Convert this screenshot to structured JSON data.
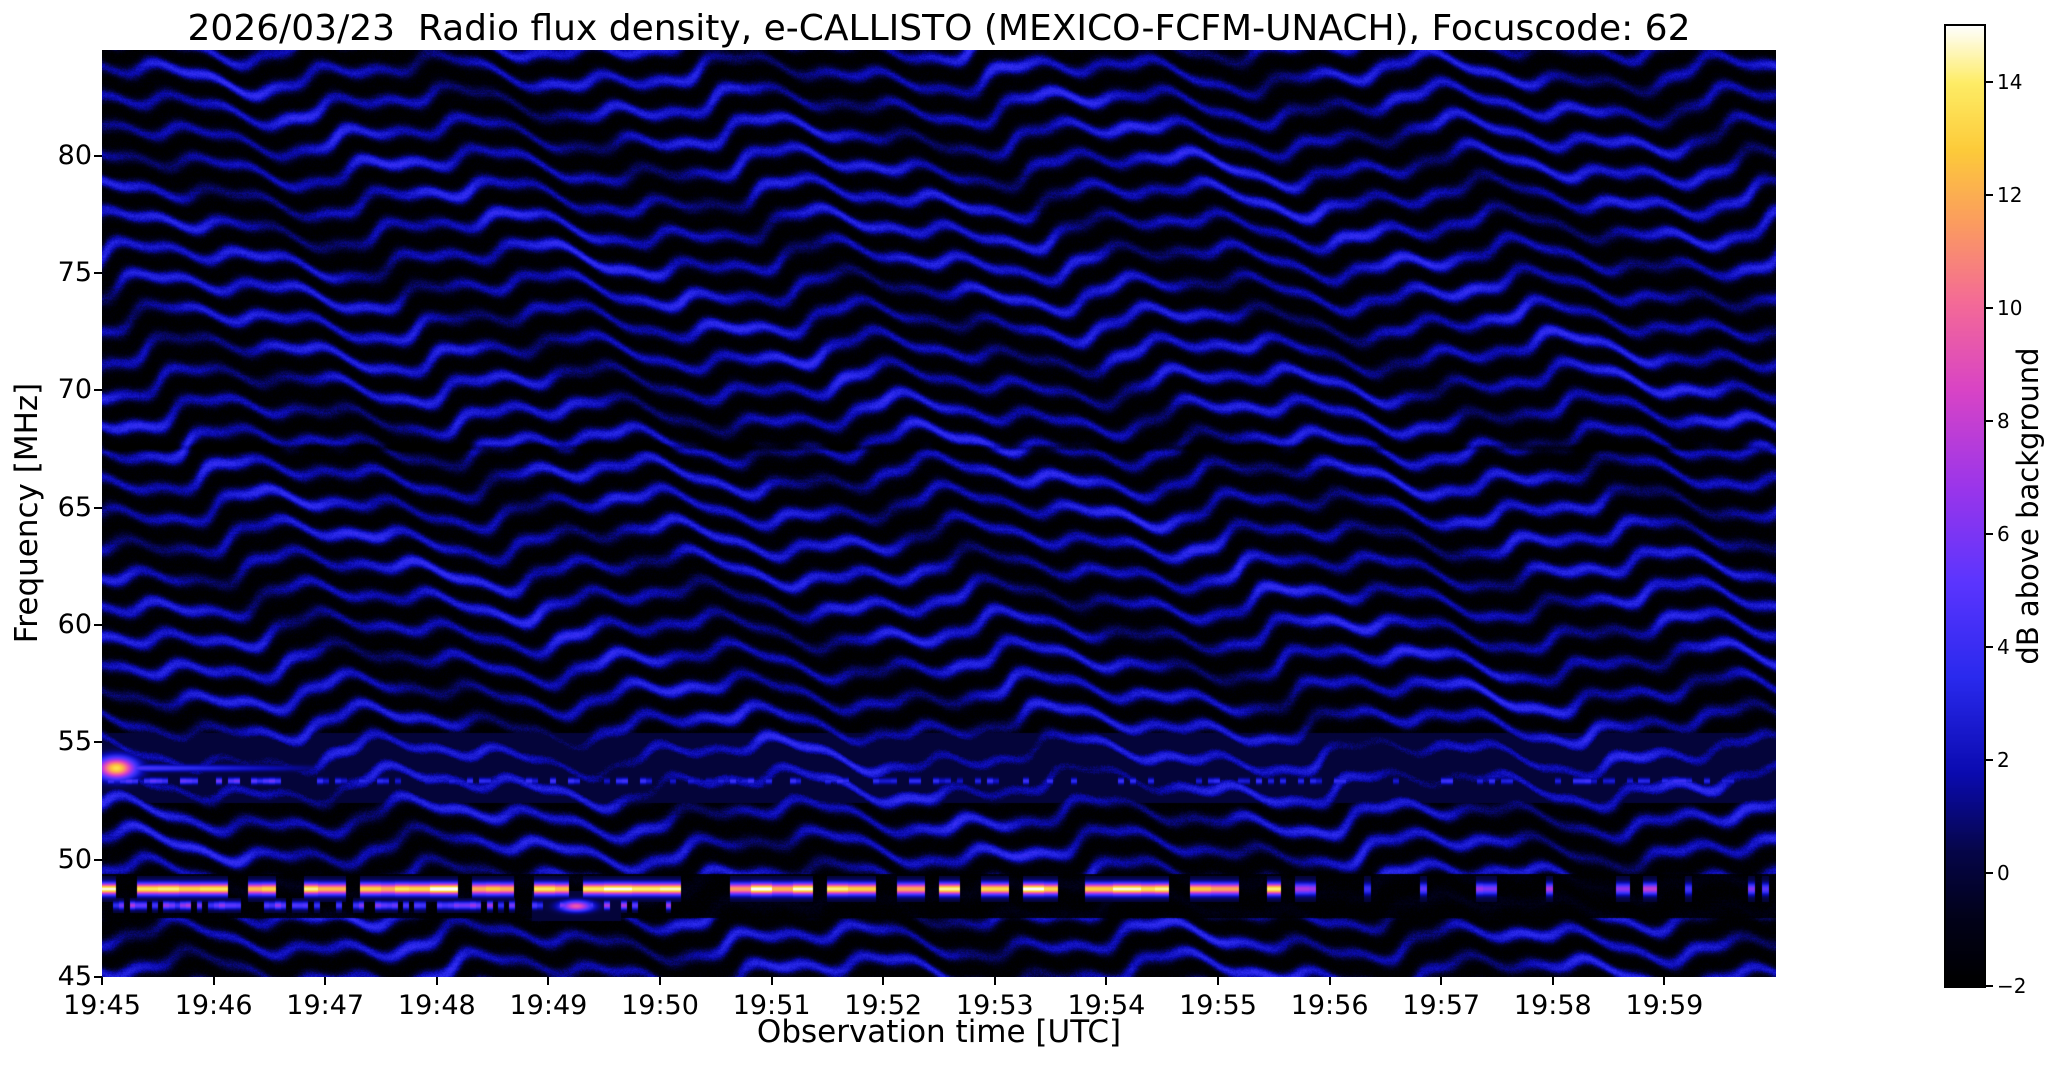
{
  "chart_data": {
    "type": "heatmap",
    "title": "2026/03/23  Radio flux density, e-CALLISTO (MEXICO-FCFM-UNACH), Focuscode: 62",
    "xlabel": "Observation time [UTC]",
    "ylabel": "Frequency [MHz]",
    "x_ticks": [
      "19:45",
      "19:46",
      "19:47",
      "19:48",
      "19:49",
      "19:50",
      "19:51",
      "19:52",
      "19:53",
      "19:54",
      "19:55",
      "19:56",
      "19:57",
      "19:58",
      "19:59"
    ],
    "x_range_minutes": [
      0,
      15
    ],
    "x_start_utc": "19:45",
    "y_ticks": [
      45,
      50,
      55,
      60,
      65,
      70,
      75,
      80
    ],
    "y_range_mhz": [
      45,
      84.5
    ],
    "value_units": "dB above background",
    "value_range": [
      -2,
      15
    ],
    "grid": false,
    "colorbar": {
      "label": "dB above background",
      "ticks": [
        -2,
        0,
        2,
        4,
        6,
        8,
        10,
        12,
        14
      ],
      "tick_labels": [
        "−2",
        "0",
        "2",
        "4",
        "6",
        "8",
        "10",
        "12",
        "14"
      ],
      "range": [
        -2,
        15
      ],
      "colormap": "gnuplot2-like (black-blue-violet-magenta-orange-yellow-white)",
      "stops": [
        {
          "u": 0.0,
          "color": "#000000"
        },
        {
          "u": 0.07,
          "color": "#02021a"
        },
        {
          "u": 0.14,
          "color": "#06064a"
        },
        {
          "u": 0.22,
          "color": "#0b0bb0"
        },
        {
          "u": 0.32,
          "color": "#2a2aee"
        },
        {
          "u": 0.42,
          "color": "#5c35ff"
        },
        {
          "u": 0.52,
          "color": "#9c36ea"
        },
        {
          "u": 0.62,
          "color": "#d944c6"
        },
        {
          "u": 0.71,
          "color": "#f46a98"
        },
        {
          "u": 0.79,
          "color": "#fb9a62"
        },
        {
          "u": 0.87,
          "color": "#fdcb3a"
        },
        {
          "u": 0.94,
          "color": "#feed66"
        },
        {
          "u": 1.0,
          "color": "#ffffff"
        }
      ]
    },
    "features": {
      "background_fringes": {
        "description": "Undulating horizontal interference fringe bands filling the whole 45-84.5 MHz band for the full 15 minutes",
        "fringe_spacing_mhz": 1.32,
        "wobble_amplitude_mhz": 0.9,
        "wobble_periods_min": [
          3.0,
          1.25,
          0.5
        ],
        "trough_db": -1.9,
        "crest_db": 3.2
      },
      "rfi_dashed_line": {
        "description": "Bright white/yellow dashed RFI carrier with dark suppressed lane around it",
        "freq_mhz": 48.75,
        "width_mhz": 0.4,
        "bright_until_min": 10.5,
        "bright_intensity_db": [
          11.5,
          15.7
        ],
        "late_intensity_db": [
          4,
          8
        ],
        "dark_lane_mhz": [
          47.5,
          49.4
        ]
      },
      "secondary_dotted_line": {
        "description": "Fainter dotted carrier below the main RFI line, visible 19:45-19:50 with an orange blob near 19:49.2",
        "freq_mhz": 48.05,
        "until_min": 5.1,
        "intensity_db": [
          3.5,
          7.5
        ]
      },
      "faint_dotted_line": {
        "description": "Weak dotted trace across the whole record",
        "freq_mhz": 53.35,
        "intensity_db": [
          2.2,
          4.4
        ]
      },
      "transient_blob": {
        "description": "Bright white/pink burst at the left edge near 19:45:08 with a short fading tail",
        "time_min": 0.13,
        "freq_mhz": 53.9,
        "peak_db": 13.5
      },
      "quiet_channel_mhz": 67.55
    }
  }
}
